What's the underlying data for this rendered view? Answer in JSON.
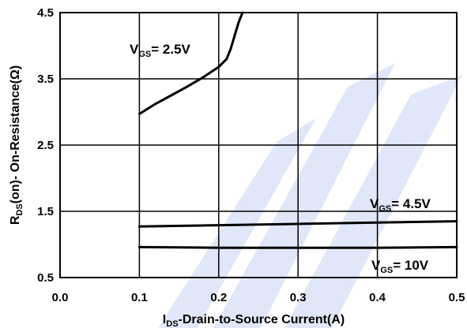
{
  "chart_data": {
    "type": "line",
    "title": "",
    "xlabel_main": "I",
    "xlabel_sub": "DS",
    "xlabel_rest": "-Drain-to-Source Current(A)",
    "ylabel_main": "R",
    "ylabel_sub": "DS",
    "ylabel_rest": "(on)- On-Resistance(Ω)",
    "xlim": [
      0.0,
      0.5
    ],
    "ylim": [
      0.5,
      4.5
    ],
    "x_ticks": [
      "0.0",
      "0.1",
      "0.2",
      "0.3",
      "0.4",
      "0.5"
    ],
    "y_ticks": [
      "4.5",
      "3.5",
      "2.5",
      "1.5",
      "0.5"
    ],
    "grid": true,
    "series": [
      {
        "name": "V_GS= 2.5V",
        "label_main": "V",
        "label_sub": "GS",
        "label_rest": "= 2.5V",
        "x": [
          0.1,
          0.12,
          0.14,
          0.16,
          0.18,
          0.2,
          0.21,
          0.215,
          0.22,
          0.225,
          0.23
        ],
        "y": [
          2.97,
          3.12,
          3.25,
          3.38,
          3.52,
          3.68,
          3.8,
          3.95,
          4.15,
          4.35,
          4.5
        ]
      },
      {
        "name": "V_GS= 4.5V",
        "label_main": "V",
        "label_sub": "GS",
        "label_rest": "= 4.5V",
        "x": [
          0.1,
          0.2,
          0.3,
          0.4,
          0.5
        ],
        "y": [
          1.27,
          1.29,
          1.31,
          1.33,
          1.35
        ]
      },
      {
        "name": "V_GS= 10V",
        "label_main": "V",
        "label_sub": "GS",
        "label_rest": "= 10V",
        "x": [
          0.1,
          0.2,
          0.3,
          0.4,
          0.5
        ],
        "y": [
          0.96,
          0.95,
          0.95,
          0.95,
          0.96
        ]
      }
    ],
    "line_color": "#000000",
    "watermark_color": "#1a4fd0"
  }
}
